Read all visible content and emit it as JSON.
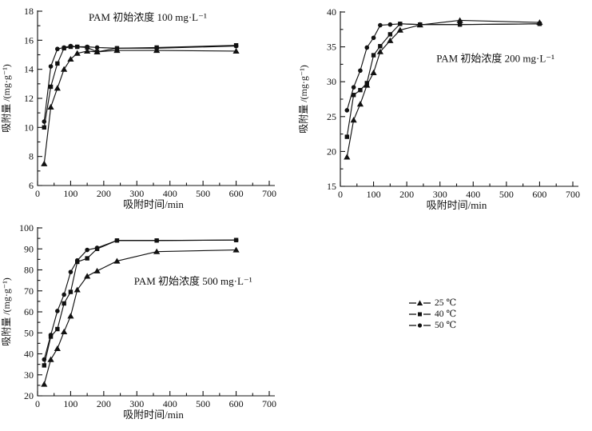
{
  "figure": {
    "background": "#ffffff",
    "ink": "#111111"
  },
  "legend": {
    "position": "figure-right-middle",
    "items": [
      {
        "label": "25 ℃",
        "marker": "triangle"
      },
      {
        "label": "40 ℃",
        "marker": "square"
      },
      {
        "label": "50 ℃",
        "marker": "circle"
      }
    ]
  },
  "chart_data": [
    {
      "type": "line",
      "title": "PAM 初始浓度 100 mg·L⁻¹",
      "xlabel": "吸附时间/min",
      "ylabel": "吸附量 /(mg·g⁻¹)",
      "xlim": [
        0,
        700
      ],
      "ylim": [
        6,
        18
      ],
      "x_tick_major": 100,
      "x_tick_minor": 50,
      "y_tick_major": 2,
      "y_tick_minor": 1,
      "grid": false,
      "x": [
        20,
        40,
        60,
        80,
        100,
        120,
        150,
        180,
        240,
        360,
        600
      ],
      "series": [
        {
          "name": "25 ℃",
          "marker": "triangle",
          "values": [
            7.5,
            11.4,
            12.7,
            14.0,
            14.7,
            15.1,
            15.25,
            15.2,
            15.3,
            15.3,
            15.25
          ]
        },
        {
          "name": "40 ℃",
          "marker": "square",
          "values": [
            10.0,
            12.8,
            14.4,
            15.45,
            15.55,
            15.55,
            15.5,
            15.2,
            15.45,
            15.5,
            15.65
          ]
        },
        {
          "name": "50 ℃",
          "marker": "circle",
          "values": [
            10.4,
            14.2,
            15.4,
            15.5,
            15.6,
            15.55,
            15.55,
            15.5,
            15.45,
            15.45,
            15.6
          ]
        }
      ],
      "annotation": {
        "text": "PAM 初始浓度 100 mg·L⁻¹",
        "x": 333,
        "y": 17.55
      }
    },
    {
      "type": "line",
      "title": "PAM 初始浓度 200 mg·L⁻¹",
      "xlabel": "吸附时间/min",
      "ylabel": "吸附量 /(mg·g⁻¹)",
      "xlim": [
        0,
        700
      ],
      "ylim": [
        15,
        40
      ],
      "x_tick_major": 100,
      "x_tick_minor": 50,
      "y_tick_major": 5,
      "y_tick_minor": 2.5,
      "grid": false,
      "x": [
        20,
        40,
        60,
        80,
        100,
        120,
        150,
        180,
        240,
        360,
        600
      ],
      "series": [
        {
          "name": "25 ℃",
          "marker": "triangle",
          "values": [
            19.2,
            24.5,
            26.8,
            29.5,
            31.3,
            34.3,
            35.9,
            37.4,
            38.15,
            38.8,
            38.5
          ]
        },
        {
          "name": "40 ℃",
          "marker": "square",
          "values": [
            22.1,
            28.1,
            28.8,
            29.8,
            33.8,
            35.1,
            36.8,
            38.3,
            38.2,
            38.2,
            38.3
          ]
        },
        {
          "name": "50 ℃",
          "marker": "circle",
          "values": [
            25.9,
            29.2,
            31.6,
            34.9,
            36.3,
            38.1,
            38.2,
            38.3,
            38.2,
            38.2,
            38.3
          ]
        }
      ],
      "annotation": {
        "text": "PAM 初始浓度 200 mg·L⁻¹",
        "x": 467,
        "y": 33.3
      }
    },
    {
      "type": "line",
      "title": "PAM 初始浓度 500 mg·L⁻¹",
      "xlabel": "吸附时间/min",
      "ylabel": "吸附量 /(mg·g⁻¹)",
      "xlim": [
        0,
        700
      ],
      "ylim": [
        20,
        100
      ],
      "x_tick_major": 100,
      "x_tick_minor": 50,
      "y_tick_major": 10,
      "y_tick_minor": 5,
      "grid": false,
      "x": [
        20,
        40,
        60,
        80,
        100,
        120,
        150,
        180,
        240,
        360,
        600
      ],
      "series": [
        {
          "name": "25 ℃",
          "marker": "triangle",
          "values": [
            25.5,
            37.3,
            42.5,
            50.5,
            58.0,
            70.5,
            77.0,
            79.5,
            84.2,
            88.7,
            89.5
          ]
        },
        {
          "name": "40 ℃",
          "marker": "square",
          "values": [
            34.5,
            48.2,
            51.8,
            64.0,
            69.5,
            83.8,
            85.5,
            90.0,
            94.0,
            94.0,
            94.2
          ]
        },
        {
          "name": "50 ℃",
          "marker": "circle",
          "values": [
            37.3,
            49.0,
            60.4,
            68.2,
            79.0,
            84.5,
            89.5,
            90.5,
            94.0,
            94.0,
            94.2
          ]
        }
      ],
      "annotation": {
        "text": "PAM 初始浓度 500 mg·L⁻¹",
        "x": 470,
        "y": 74.5
      }
    }
  ]
}
